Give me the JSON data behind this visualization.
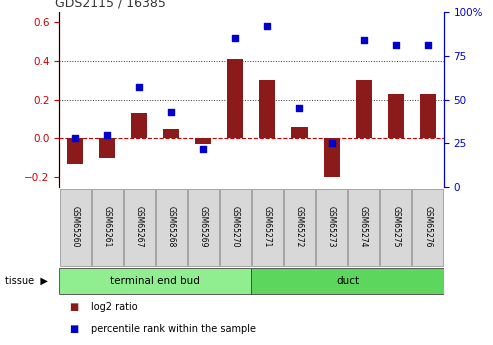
{
  "title": "GDS2115 / 16385",
  "samples": [
    "GSM65260",
    "GSM65261",
    "GSM65267",
    "GSM65268",
    "GSM65269",
    "GSM65270",
    "GSM65271",
    "GSM65272",
    "GSM65273",
    "GSM65274",
    "GSM65275",
    "GSM65276"
  ],
  "log2_ratio": [
    -0.13,
    -0.1,
    0.13,
    0.05,
    -0.03,
    0.41,
    0.3,
    0.06,
    -0.2,
    0.3,
    0.23,
    0.23
  ],
  "percentile_rank": [
    28,
    30,
    57,
    43,
    22,
    85,
    92,
    45,
    25,
    84,
    81,
    81
  ],
  "tissue_groups": [
    {
      "label": "terminal end bud",
      "start": 0,
      "end": 6,
      "color": "#90EE90"
    },
    {
      "label": "duct",
      "start": 6,
      "end": 12,
      "color": "#5CD65C"
    }
  ],
  "bar_color": "#8B1A1A",
  "dot_color": "#0000CD",
  "ylim_left": [
    -0.25,
    0.65
  ],
  "ylim_right": [
    0,
    100
  ],
  "yticks_left": [
    -0.2,
    0.0,
    0.2,
    0.4,
    0.6
  ],
  "yticks_right": [
    0,
    25,
    50,
    75,
    100
  ],
  "hline_color": "#CC0000",
  "dotted_line_color": "#333333",
  "dotted_lines": [
    0.2,
    0.4
  ],
  "tissue_label": "tissue",
  "legend_bar_label": "log2 ratio",
  "legend_dot_label": "percentile rank within the sample",
  "background_color": "#FFFFFF"
}
